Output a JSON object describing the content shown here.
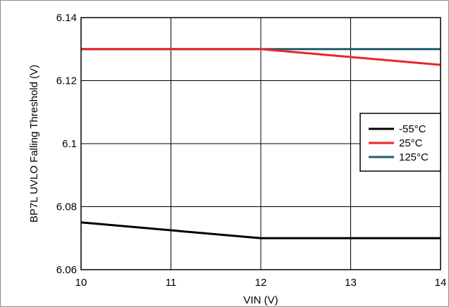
{
  "chart_data": {
    "type": "line",
    "title": "",
    "xlabel": "VIN (V)",
    "ylabel": "BP7L UVLO Falling Threshold (V)",
    "xlim": [
      10,
      14
    ],
    "ylim": [
      6.06,
      6.14
    ],
    "xticks": [
      "10",
      "11",
      "12",
      "13",
      "14"
    ],
    "yticks": [
      "6.06",
      "6.08",
      "6.1",
      "6.12",
      "6.14"
    ],
    "grid": true,
    "legend_position": "right",
    "series": [
      {
        "name": "-55°C",
        "color": "#000000",
        "x": [
          10,
          12,
          14
        ],
        "y": [
          6.075,
          6.07,
          6.07
        ]
      },
      {
        "name": "25°C",
        "color": "#e8262a",
        "x": [
          10,
          12,
          14
        ],
        "y": [
          6.13,
          6.13,
          6.125
        ]
      },
      {
        "name": "125°C",
        "color": "#1f5c6b",
        "x": [
          10,
          12,
          14
        ],
        "y": [
          6.13,
          6.13,
          6.13
        ]
      }
    ]
  }
}
